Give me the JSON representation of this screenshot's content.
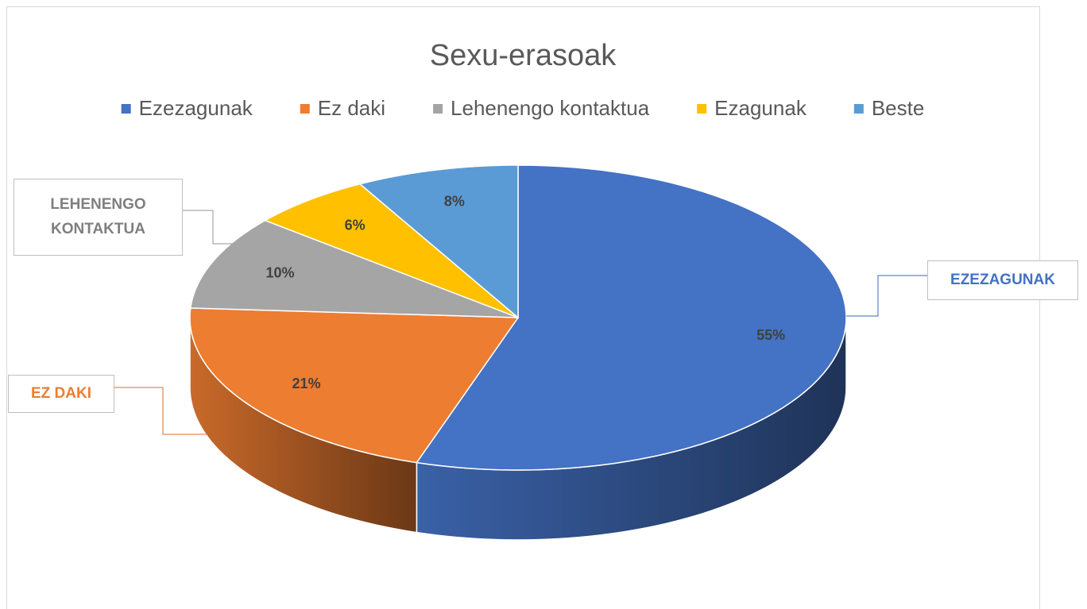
{
  "chart_data": {
    "type": "pie3d",
    "title": "Sexu-erasoak",
    "categories": [
      "Ezezagunak",
      "Ez daki",
      "Lehenengo kontaktua",
      "Ezagunak",
      "Beste"
    ],
    "values": [
      55,
      21,
      10,
      6,
      8
    ],
    "value_labels": [
      "55%",
      "21%",
      "10%",
      "6%",
      "8%"
    ],
    "colors": [
      "#4472c4",
      "#ed7d31",
      "#a5a5a5",
      "#ffc000",
      "#5b9bd5"
    ],
    "callout_labels": [
      "EZEZAGUNAK",
      "EZ DAKI",
      "LEHENENGO KONTAKTUA",
      null,
      null
    ],
    "legend": "top"
  }
}
